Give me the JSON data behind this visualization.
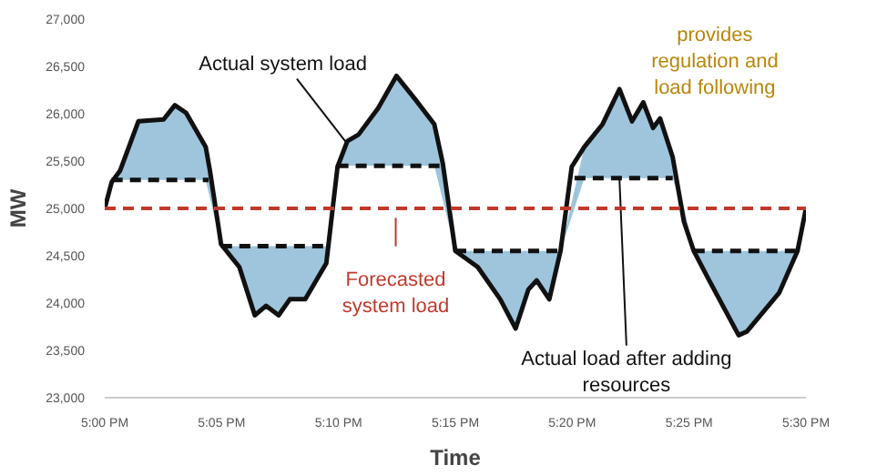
{
  "chart_data": {
    "type": "line",
    "xlabel": "Time",
    "ylabel": "MW",
    "xlim": [
      17.0,
      17.5
    ],
    "xticks": [
      {
        "value": 17.0,
        "label": "5:00 PM"
      },
      {
        "value": 17.0833,
        "label": "5:05 PM"
      },
      {
        "value": 17.1667,
        "label": "5:10 PM"
      },
      {
        "value": 17.25,
        "label": "5:15 PM"
      },
      {
        "value": 17.3333,
        "label": "5:20 PM"
      },
      {
        "value": 17.4167,
        "label": "5:25 PM"
      },
      {
        "value": 17.5,
        "label": "5:30 PM"
      }
    ],
    "ylim": [
      23000,
      27000
    ],
    "yticks": [
      {
        "value": 23000,
        "label": "23,000"
      },
      {
        "value": 23500,
        "label": "23,500"
      },
      {
        "value": 24000,
        "label": "24,000"
      },
      {
        "value": 24500,
        "label": "24,500"
      },
      {
        "value": 25000,
        "label": "25,000"
      },
      {
        "value": 25500,
        "label": "25,500"
      },
      {
        "value": 26000,
        "label": "26,000"
      },
      {
        "value": 26500,
        "label": "26,500"
      },
      {
        "value": 27000,
        "label": "27,000"
      }
    ],
    "grid": false,
    "marker": "none",
    "series": [
      {
        "color": "#111111",
        "line_style": "solid",
        "x": [
          17.0,
          17.005,
          17.011,
          17.024,
          17.042,
          17.05,
          17.058,
          17.072,
          17.075,
          17.083,
          17.096,
          17.107,
          17.115,
          17.124,
          17.132,
          17.143,
          17.158,
          17.166,
          17.173,
          17.181,
          17.195,
          17.208,
          17.221,
          17.235,
          17.241,
          17.25,
          17.266,
          17.282,
          17.293,
          17.302,
          17.308,
          17.317,
          17.325,
          17.333,
          17.342,
          17.355,
          17.367,
          17.376,
          17.384,
          17.391,
          17.396,
          17.405,
          17.413,
          17.42,
          17.431,
          17.452,
          17.458,
          17.481,
          17.494,
          17.5
        ],
        "values": [
          25000,
          25280,
          25400,
          25920,
          25940,
          26090,
          26010,
          25650,
          25400,
          24620,
          24380,
          23870,
          23970,
          23870,
          24040,
          24040,
          24420,
          25440,
          25710,
          25780,
          26060,
          26400,
          26160,
          25890,
          25480,
          24550,
          24380,
          24040,
          23730,
          24140,
          24240,
          24040,
          24550,
          25440,
          25650,
          25890,
          26260,
          25920,
          26120,
          25850,
          25950,
          25540,
          24860,
          24550,
          24240,
          23660,
          23700,
          24110,
          24550,
          25000
        ],
        "lower": [
          null,
          25300,
          25300,
          25300,
          25300,
          25300,
          25300,
          25300,
          null,
          24600,
          24600,
          24600,
          24600,
          24600,
          24600,
          24600,
          24600,
          25450,
          25450,
          25450,
          25450,
          25450,
          25450,
          25450,
          null,
          24550,
          24550,
          24550,
          24550,
          24550,
          24550,
          24550,
          24550,
          null,
          25320,
          25320,
          25320,
          25320,
          25320,
          25320,
          25320,
          25320,
          null,
          24550,
          24550,
          24550,
          24550,
          24550,
          24550,
          null
        ],
        "upper": [
          null,
          25280,
          25400,
          25920,
          25940,
          26090,
          26010,
          25650,
          null,
          24620,
          24380,
          23870,
          23970,
          23870,
          24040,
          24040,
          24420,
          25440,
          25710,
          25780,
          26060,
          26400,
          26160,
          25890,
          null,
          24550,
          24380,
          24040,
          23730,
          24140,
          24240,
          24040,
          24550,
          null,
          25650,
          25890,
          26260,
          25920,
          26120,
          25850,
          25950,
          25540,
          null,
          24550,
          24240,
          23660,
          23700,
          24110,
          24550,
          null
        ]
      },
      {
        "color": "#111111",
        "line_style": "dashed",
        "x": [
          17.005,
          17.074,
          null,
          17.083,
          17.158,
          null,
          17.166,
          17.239,
          null,
          17.25,
          17.325,
          null,
          17.335,
          17.405,
          null,
          17.42,
          17.494
        ],
        "values": [
          25300,
          25300,
          null,
          24600,
          24600,
          null,
          25450,
          25450,
          null,
          24550,
          24550,
          null,
          25320,
          25320,
          null,
          24550,
          24550
        ]
      }
    ],
    "ref_lines": [
      {
        "axis": "y",
        "value": 25000,
        "label": "Forecasted system load",
        "color": "#c0392b",
        "line_style": "dashed"
      }
    ],
    "annotations": [
      {
        "text": "Actual system load",
        "x": 17.172,
        "y": 25700
      },
      {
        "text": "Actual load after adding resources",
        "x": 17.367,
        "y": 25320
      },
      "provides regulation and load following"
    ]
  }
}
